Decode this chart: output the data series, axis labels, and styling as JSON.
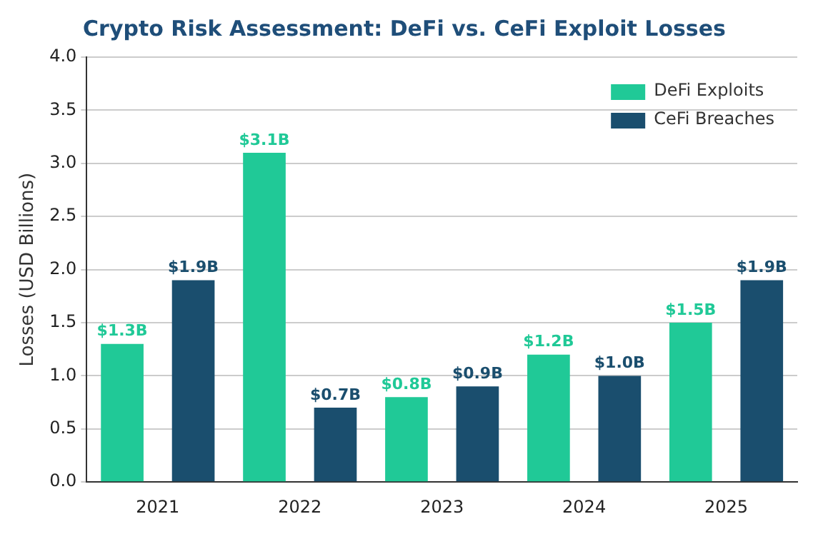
{
  "chart_data": {
    "type": "bar",
    "title": "Crypto Risk Assessment: DeFi vs. CeFi Exploit Losses",
    "ylabel": "Losses (USD Billions)",
    "categories": [
      "2021",
      "2022",
      "2023",
      "2024",
      "2025"
    ],
    "series": [
      {
        "name": "DeFi Exploits",
        "color": "#20c997",
        "values": [
          1.3,
          3.1,
          0.8,
          1.2,
          1.5
        ],
        "value_labels": [
          "$1.3B",
          "$3.1B",
          "$0.8B",
          "$1.2B",
          "$1.5B"
        ]
      },
      {
        "name": "CeFi Breaches",
        "color": "#1a4e6e",
        "values": [
          1.9,
          0.7,
          0.9,
          1.0,
          1.9
        ],
        "value_labels": [
          "$1.9B",
          "$0.7B",
          "$0.9B",
          "$1.0B",
          "$1.9B"
        ]
      }
    ],
    "ylim": [
      0,
      4
    ],
    "yticks": [
      {
        "value": 0,
        "label": "0.0"
      },
      {
        "value": 0.5,
        "label": "0.5"
      },
      {
        "value": 1,
        "label": "1.0"
      },
      {
        "value": 1.5,
        "label": "1.5"
      },
      {
        "value": 2,
        "label": "2.0"
      },
      {
        "value": 2.5,
        "label": "2.5"
      },
      {
        "value": 3,
        "label": "3.0"
      },
      {
        "value": 3.5,
        "label": "3.5"
      },
      {
        "value": 4,
        "label": "4.0"
      }
    ],
    "grid": "y",
    "legend": "top right"
  }
}
